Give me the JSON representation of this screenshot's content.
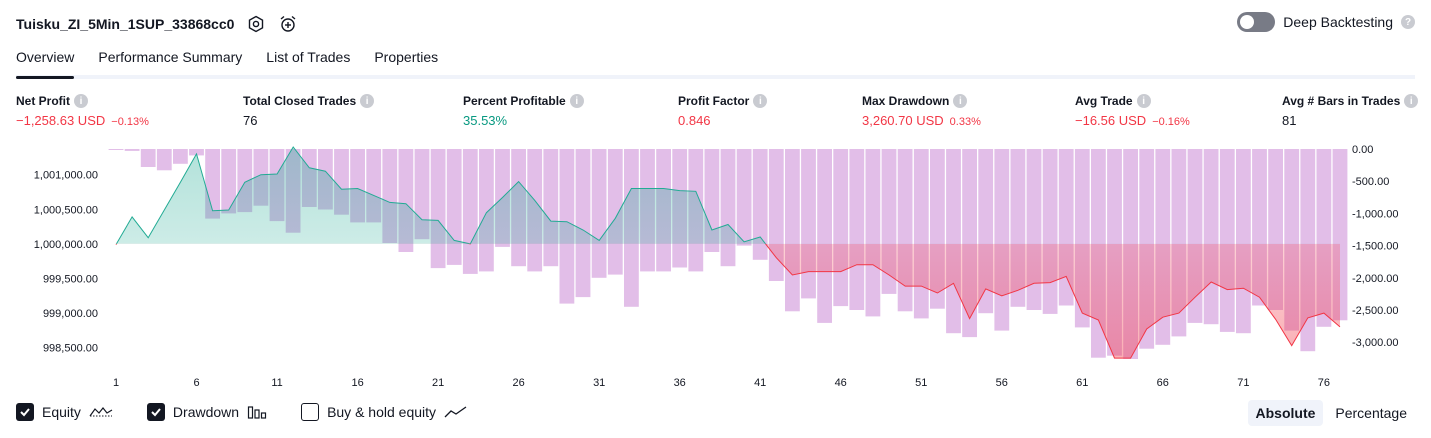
{
  "header": {
    "strategy_name": "Tuisku_ZI_5Min_1SUP_33868cc0",
    "deep_backtesting_label": "Deep Backtesting"
  },
  "tabs": [
    {
      "label": "Overview",
      "active": true
    },
    {
      "label": "Performance Summary",
      "active": false
    },
    {
      "label": "List of Trades",
      "active": false
    },
    {
      "label": "Properties",
      "active": false
    }
  ],
  "metrics": [
    {
      "label": "Net Profit",
      "value": "−1,258.63 USD",
      "pct": "−0.13%",
      "tone": "neg"
    },
    {
      "label": "Total Closed Trades",
      "value": "76",
      "pct": "",
      "tone": "neu"
    },
    {
      "label": "Percent Profitable",
      "value": "35.53%",
      "pct": "",
      "tone": "pos"
    },
    {
      "label": "Profit Factor",
      "value": "0.846",
      "pct": "",
      "tone": "neg"
    },
    {
      "label": "Max Drawdown",
      "value": "3,260.70 USD",
      "pct": "0.33%",
      "tone": "neg"
    },
    {
      "label": "Avg Trade",
      "value": "−16.56 USD",
      "pct": "−0.16%",
      "tone": "neg"
    },
    {
      "label": "Avg # Bars in Trades",
      "value": "81",
      "pct": "",
      "tone": "neu"
    }
  ],
  "legend": {
    "equity": "Equity",
    "drawdown": "Drawdown",
    "buy_hold": "Buy & hold equity"
  },
  "modes": {
    "absolute": "Absolute",
    "percentage": "Percentage"
  },
  "colors": {
    "equity_up": "#22ab94",
    "equity_down": "#f23645",
    "drawdown_bar": "#ce93d8",
    "text_neg": "#f23645",
    "text_pos": "#089981"
  },
  "chart_data": {
    "type": "line",
    "left_axis": {
      "ticks": [
        998500,
        999000,
        999500,
        1000000,
        1000500,
        1001000
      ],
      "tick_labels": [
        "998,500.00",
        "999,000.00",
        "999,500.00",
        "1,000,000.00",
        "1,000,500.00",
        "1,001,000.00"
      ],
      "range": [
        998250,
        1001400
      ]
    },
    "right_axis": {
      "ticks": [
        0,
        -500,
        -1000,
        -1500,
        -2000,
        -2500,
        -3000
      ],
      "tick_labels": [
        "0.00",
        "-500.00",
        "-1,000.00",
        "-1,500.00",
        "-2,000.00",
        "-2,500.00",
        "-3,000.00"
      ],
      "range": [
        -3260.7,
        0
      ]
    },
    "x_tick_labels": [
      "1",
      "6",
      "11",
      "16",
      "21",
      "26",
      "31",
      "36",
      "41",
      "46",
      "51",
      "56",
      "61",
      "66",
      "71",
      "76"
    ],
    "x_ticks": [
      1,
      6,
      11,
      16,
      21,
      26,
      31,
      36,
      41,
      46,
      51,
      56,
      61,
      66,
      71,
      76
    ],
    "baseline": 1000000,
    "equity": [
      999990,
      1000390,
      1000090,
      1000490,
      1000890,
      1001300,
      1000480,
      1000490,
      1000890,
      1001000,
      1001010,
      1001400,
      1001100,
      1001050,
      1000790,
      1000800,
      1000700,
      1000600,
      1000580,
      1000350,
      1000340,
      1000050,
      1000000,
      1000450,
      1000670,
      1000900,
      1000630,
      1000330,
      1000320,
      1000200,
      1000050,
      1000370,
      1000800,
      1000800,
      1000800,
      1000770,
      1000760,
      1000200,
      1000280,
      1000030,
      1000100,
      999800,
      999550,
      999600,
      999600,
      999600,
      999700,
      999700,
      999550,
      999390,
      999390,
      999290,
      999430,
      998920,
      999350,
      999250,
      999330,
      999430,
      999440,
      999530,
      999000,
      998900,
      998350,
      998350,
      998770,
      998940,
      999000,
      999230,
      999450,
      999340,
      999360,
      999230,
      998910,
      998530,
      998930,
      999000,
      998800
    ],
    "drawdown": [
      -10,
      -30,
      -280,
      -330,
      -230,
      -100,
      -1080,
      -1000,
      -980,
      -880,
      -1120,
      -1300,
      -900,
      -940,
      -1020,
      -1140,
      -1140,
      -1460,
      -1600,
      -1400,
      -1850,
      -1800,
      -1940,
      -1900,
      -1520,
      -1820,
      -1900,
      -1820,
      -2400,
      -2300,
      -2000,
      -1950,
      -2450,
      -1900,
      -1900,
      -1840,
      -1900,
      -1600,
      -1820,
      -1500,
      -1720,
      -2050,
      -2520,
      -2320,
      -2700,
      -2440,
      -2500,
      -2600,
      -2250,
      -2520,
      -2630,
      -2480,
      -2860,
      -2920,
      -2550,
      -2820,
      -2450,
      -2500,
      -2560,
      -2430,
      -2770,
      -3240,
      -3210,
      -3260,
      -3100,
      -3040,
      -2910,
      -2700,
      -2720,
      -2840,
      -2860,
      -2430,
      -2500,
      -2820,
      -3140,
      -2760,
      -2660
    ],
    "buy_hold": [],
    "grid": false
  }
}
